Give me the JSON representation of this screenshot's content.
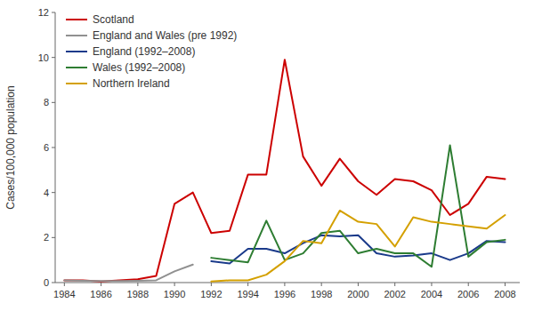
{
  "chart_data": {
    "type": "line",
    "x": [
      1984,
      1985,
      1986,
      1987,
      1988,
      1989,
      1990,
      1991,
      1992,
      1993,
      1994,
      1995,
      1996,
      1997,
      1998,
      1999,
      2000,
      2001,
      2002,
      2003,
      2004,
      2005,
      2006,
      2007,
      2008
    ],
    "series": [
      {
        "name": "Scotland",
        "color": "#cc0000",
        "values": [
          0.1,
          0.1,
          0.05,
          0.1,
          0.15,
          0.3,
          3.5,
          4.0,
          2.2,
          2.3,
          4.8,
          4.8,
          9.9,
          5.6,
          4.3,
          5.5,
          4.5,
          3.9,
          4.6,
          4.5,
          4.1,
          3.0,
          3.5,
          4.7,
          4.6
        ]
      },
      {
        "name": "England and Wales (pre 1992)",
        "color": "#909090",
        "values": [
          0.1,
          0.08,
          0.07,
          0.07,
          0.08,
          0.1,
          0.5,
          0.8,
          null,
          null,
          null,
          null,
          null,
          null,
          null,
          null,
          null,
          null,
          null,
          null,
          null,
          null,
          null,
          null,
          null
        ]
      },
      {
        "name": "England (1992–2008)",
        "color": "#1a3a8a",
        "values": [
          null,
          null,
          null,
          null,
          null,
          null,
          null,
          null,
          0.95,
          0.85,
          1.5,
          1.5,
          1.3,
          1.75,
          2.1,
          2.05,
          2.1,
          1.3,
          1.15,
          1.2,
          1.3,
          1.0,
          1.3,
          1.85,
          1.8
        ]
      },
      {
        "name": "Wales (1992–2008)",
        "color": "#2e7d32",
        "values": [
          null,
          null,
          null,
          null,
          null,
          null,
          null,
          null,
          1.1,
          1.0,
          0.9,
          2.75,
          1.0,
          1.3,
          2.2,
          2.3,
          1.3,
          1.5,
          1.3,
          1.3,
          0.7,
          6.1,
          1.15,
          1.8,
          1.9
        ]
      },
      {
        "name": "Northern Ireland",
        "color": "#d4a000",
        "values": [
          null,
          null,
          null,
          null,
          null,
          null,
          null,
          null,
          0.05,
          0.1,
          0.1,
          0.35,
          0.95,
          1.85,
          1.75,
          3.2,
          2.7,
          2.6,
          1.6,
          2.9,
          2.7,
          2.6,
          2.5,
          2.4,
          3.0
        ]
      }
    ],
    "y_label": "Cases/100,000 population",
    "xlim": [
      1983.5,
      2008.8
    ],
    "ylim": [
      0,
      12
    ],
    "yticks": [
      0,
      2,
      4,
      6,
      8,
      10,
      12
    ],
    "xticks": [
      1984,
      1986,
      1988,
      1990,
      1992,
      1994,
      1996,
      1998,
      2000,
      2002,
      2004,
      2006,
      2008
    ],
    "legend": "upper left",
    "grid": false
  }
}
